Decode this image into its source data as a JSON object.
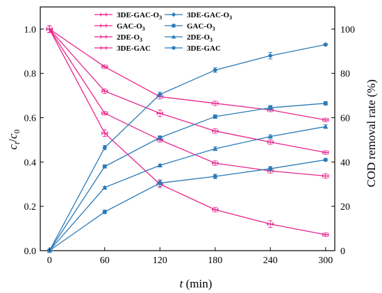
{
  "chart_data": {
    "type": "line",
    "x": [
      0,
      60,
      120,
      180,
      240,
      300
    ],
    "xlabel": {
      "italic": "t",
      "rest": " (min)"
    },
    "ylabel_left": {
      "c": "c",
      "sub_t": "t",
      "slash": "/",
      "sub_0": "0"
    },
    "ylabel_right": "COD removal rate (%)",
    "xlim": [
      -10,
      310
    ],
    "ylim_left": [
      0,
      1.1
    ],
    "ylim_right": [
      0,
      110
    ],
    "xticks": [
      0,
      60,
      120,
      180,
      240,
      300
    ],
    "yticks_left": [
      0.0,
      0.2,
      0.4,
      0.6,
      0.8,
      1.0
    ],
    "yticks_left_labels": [
      "0.0",
      "0.2",
      "0.4",
      "0.6",
      "0.8",
      "1.0"
    ],
    "yticks_right": [
      0,
      20,
      40,
      60,
      80,
      100
    ],
    "yticks_right_labels": [
      "0",
      "20",
      "40",
      "60",
      "80",
      "100"
    ],
    "grid": false,
    "legend_position": "top-left",
    "colors": {
      "concentration": "#e8258c",
      "cod": "#2a7ab8"
    },
    "series": [
      {
        "name": "3DE-GAC-O3",
        "label_main": "3DE-GAC-O",
        "label_sub": "3",
        "axis": "left",
        "marker": "bar",
        "values": [
          1.0,
          0.53,
          0.3,
          0.185,
          0.12,
          0.072
        ],
        "errors": [
          0.015,
          0.015,
          0.015,
          0.01,
          0.015,
          0.008
        ]
      },
      {
        "name": "GAC-O3",
        "label_main": "GAC-O",
        "label_sub": "3",
        "axis": "left",
        "marker": "bar",
        "values": [
          1.0,
          0.83,
          0.695,
          0.665,
          0.635,
          0.59
        ],
        "errors": [
          0.015,
          0.008,
          0.01,
          0.01,
          0.008,
          0.008
        ]
      },
      {
        "name": "2DE-O3",
        "label_main": "2DE-O",
        "label_sub": "3",
        "axis": "left",
        "marker": "bar",
        "values": [
          1.0,
          0.72,
          0.62,
          0.54,
          0.49,
          0.443
        ],
        "errors": [
          0.015,
          0.01,
          0.015,
          0.01,
          0.01,
          0.008
        ]
      },
      {
        "name": "3DE-GAC",
        "label_main": "3DE-GAC",
        "label_sub": "",
        "axis": "left",
        "marker": "bar",
        "values": [
          1.0,
          0.62,
          0.5,
          0.395,
          0.36,
          0.337
        ],
        "errors": [
          0.015,
          0.008,
          0.01,
          0.01,
          0.01,
          0.01
        ]
      },
      {
        "name": "3DE-GAC-O3",
        "label_main": "3DE-GAC-O",
        "label_sub": "3",
        "axis": "right",
        "marker": "diamond",
        "values": [
          0,
          46.5,
          70.5,
          81.5,
          88,
          93
        ],
        "errors": [
          0,
          1.0,
          1.0,
          1.0,
          1.5,
          0.5
        ]
      },
      {
        "name": "GAC-O3",
        "label_main": "GAC-O",
        "label_sub": "3",
        "axis": "right",
        "marker": "square",
        "values": [
          0,
          38,
          51,
          60.5,
          64.5,
          66.5
        ],
        "errors": [
          0,
          0.5,
          0.8,
          0.8,
          1.0,
          0.8
        ]
      },
      {
        "name": "2DE-O3",
        "label_main": "2DE-O",
        "label_sub": "3",
        "axis": "right",
        "marker": "triangle",
        "values": [
          0,
          28.5,
          38.5,
          46,
          51.5,
          56
        ],
        "errors": [
          0,
          0.5,
          0.5,
          0.8,
          0.8,
          0.8
        ]
      },
      {
        "name": "3DE-GAC",
        "label_main": "3DE-GAC",
        "label_sub": "",
        "axis": "right",
        "marker": "circle",
        "values": [
          0,
          17.5,
          30.5,
          33.5,
          37,
          41
        ],
        "errors": [
          0,
          0.8,
          1.5,
          1.0,
          1.0,
          0.5
        ]
      }
    ]
  }
}
